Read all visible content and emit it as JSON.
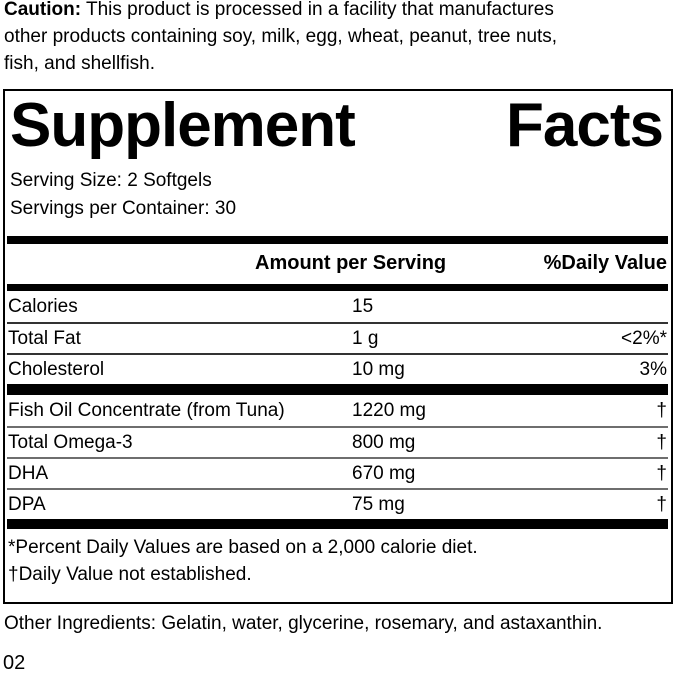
{
  "caution": {
    "label": "Caution:",
    "line1": "This product is processed in a facility that manufactures",
    "line2": "other products containing soy, milk, egg, wheat, peanut, tree nuts,",
    "line3": "fish, and shellfish."
  },
  "panel": {
    "title_words": [
      "Supplement",
      "Facts"
    ],
    "serving_size": "Serving Size: 2 Softgels",
    "servings_per_container": "Servings per Container: 30",
    "columns": {
      "amount": "Amount per Serving",
      "daily_value": "%Daily Value"
    },
    "rows_main": [
      {
        "name": "Calories",
        "amount": "15",
        "dv": ""
      },
      {
        "name": "Total Fat",
        "amount": "1 g",
        "dv": "<2%*"
      },
      {
        "name": "Cholesterol",
        "amount": "10 mg",
        "dv": "3%"
      }
    ],
    "rows_supplement": [
      {
        "name": "Fish Oil Concentrate (from Tuna)",
        "amount": "1220 mg",
        "dv": "†"
      },
      {
        "name": "Total Omega-3",
        "amount": "800 mg",
        "dv": "†"
      },
      {
        "name": "DHA",
        "amount": "670 mg",
        "dv": "†"
      },
      {
        "name": "DPA",
        "amount": "75 mg",
        "dv": "†"
      }
    ],
    "footnotes": [
      "*Percent Daily Values are based on a 2,000 calorie diet.",
      "†Daily Value not established."
    ]
  },
  "other_ingredients": "Other Ingredients: Gelatin, water, glycerine, rosemary, and astaxanthin.",
  "page_number": "02",
  "colors": {
    "text": "#000000",
    "background": "#ffffff",
    "rule_thick": "#000000",
    "rule_thin_main": "#333333",
    "rule_thin_supplement": "#6e6e6e"
  }
}
